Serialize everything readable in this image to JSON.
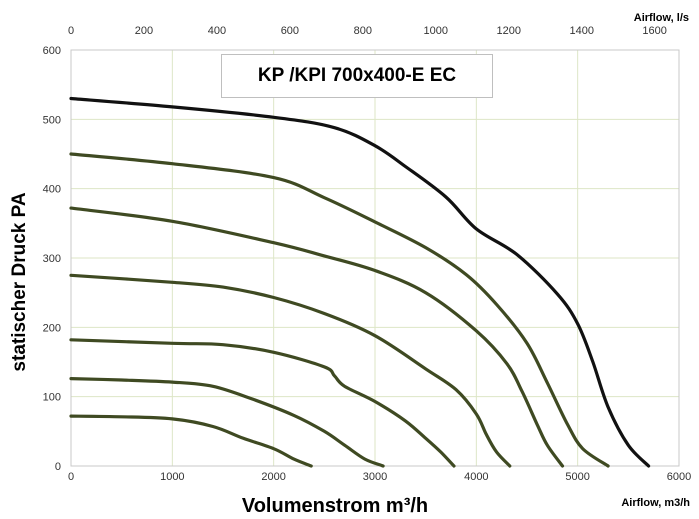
{
  "chart_data": {
    "type": "line",
    "title": "KP /KPI 700x400-E EC",
    "xlabel": "Volumenstrom m³/h",
    "ylabel": "statischer Druck PA",
    "x2label": "Airflow, l/s",
    "xlabel_right": "Airflow, m3/h",
    "xlim": [
      0,
      6000
    ],
    "ylim": [
      0,
      600
    ],
    "x2lim": [
      0,
      1666.67
    ],
    "x_ticks": [
      "0",
      "1000",
      "2000",
      "3000",
      "4000",
      "5000",
      "6000"
    ],
    "y_ticks": [
      "0",
      "100",
      "200",
      "300",
      "400",
      "500",
      "600"
    ],
    "x2_ticks": [
      "0",
      "200",
      "400",
      "600",
      "800",
      "1000",
      "1200",
      "1400",
      "1600"
    ],
    "grid": true,
    "legend": "none",
    "colors": {
      "top_curve": "#111111",
      "curves": "#3f4a22",
      "grid": "#dde6c6"
    },
    "series": [
      {
        "points": [
          [
            0,
            530
          ],
          [
            1000,
            518
          ],
          [
            2000,
            503
          ],
          [
            2600,
            488
          ],
          [
            3000,
            462
          ],
          [
            3300,
            432
          ],
          [
            3700,
            388
          ],
          [
            4000,
            342
          ],
          [
            4400,
            305
          ],
          [
            4800,
            248
          ],
          [
            5000,
            205
          ],
          [
            5150,
            150
          ],
          [
            5300,
            85
          ],
          [
            5500,
            30
          ],
          [
            5700,
            0
          ]
        ]
      },
      {
        "points": [
          [
            0,
            450
          ],
          [
            1000,
            436
          ],
          [
            2000,
            416
          ],
          [
            2500,
            387
          ],
          [
            3000,
            352
          ],
          [
            3500,
            315
          ],
          [
            3900,
            276
          ],
          [
            4200,
            233
          ],
          [
            4500,
            177
          ],
          [
            4700,
            120
          ],
          [
            4900,
            60
          ],
          [
            5050,
            25
          ],
          [
            5300,
            0
          ]
        ]
      },
      {
        "points": [
          [
            0,
            372
          ],
          [
            1000,
            353
          ],
          [
            2000,
            322
          ],
          [
            2500,
            303
          ],
          [
            3000,
            282
          ],
          [
            3500,
            250
          ],
          [
            4000,
            195
          ],
          [
            4300,
            148
          ],
          [
            4450,
            108
          ],
          [
            4600,
            60
          ],
          [
            4700,
            30
          ],
          [
            4850,
            0
          ]
        ]
      },
      {
        "points": [
          [
            0,
            275
          ],
          [
            1000,
            265
          ],
          [
            1500,
            258
          ],
          [
            2000,
            243
          ],
          [
            2500,
            220
          ],
          [
            3000,
            188
          ],
          [
            3500,
            140
          ],
          [
            3800,
            110
          ],
          [
            4000,
            75
          ],
          [
            4100,
            45
          ],
          [
            4200,
            20
          ],
          [
            4330,
            0
          ]
        ]
      },
      {
        "points": [
          [
            0,
            182
          ],
          [
            1000,
            177
          ],
          [
            1500,
            175
          ],
          [
            2000,
            164
          ],
          [
            2500,
            143
          ],
          [
            2600,
            130
          ],
          [
            2700,
            115
          ],
          [
            3000,
            93
          ],
          [
            3300,
            65
          ],
          [
            3500,
            40
          ],
          [
            3650,
            20
          ],
          [
            3780,
            0
          ]
        ]
      },
      {
        "points": [
          [
            0,
            126
          ],
          [
            500,
            124
          ],
          [
            1000,
            121
          ],
          [
            1400,
            115
          ],
          [
            1800,
            96
          ],
          [
            2200,
            73
          ],
          [
            2500,
            50
          ],
          [
            2700,
            30
          ],
          [
            2900,
            10
          ],
          [
            3080,
            0
          ]
        ]
      },
      {
        "points": [
          [
            0,
            72
          ],
          [
            500,
            71
          ],
          [
            1000,
            68
          ],
          [
            1400,
            57
          ],
          [
            1700,
            40
          ],
          [
            2000,
            25
          ],
          [
            2200,
            10
          ],
          [
            2370,
            0
          ]
        ]
      }
    ]
  }
}
